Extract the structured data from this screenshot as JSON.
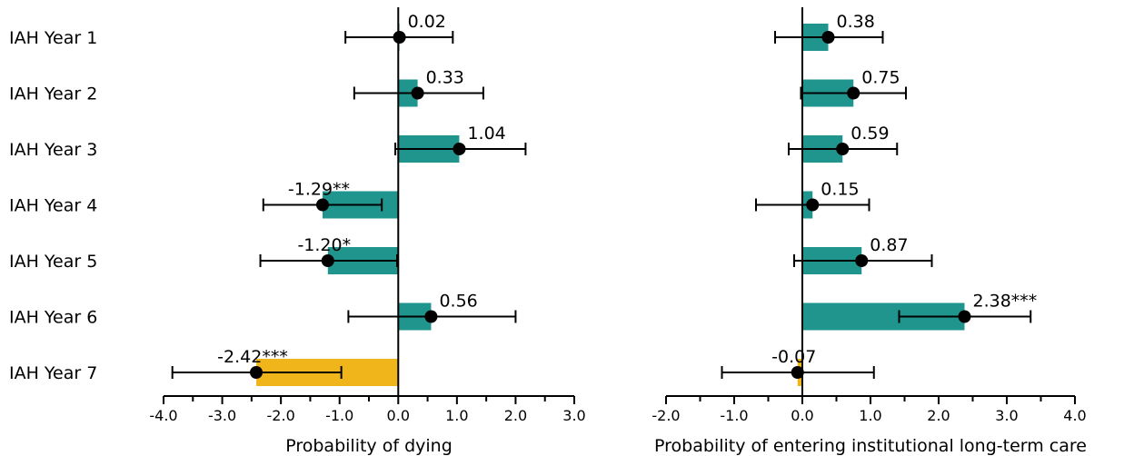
{
  "chart_data": {
    "type": "bar",
    "orientation": "horizontal",
    "categories": [
      "IAH Year 1",
      "IAH Year 2",
      "IAH Year 3",
      "IAH Year 4",
      "IAH Year 5",
      "IAH Year 6",
      "IAH Year 7"
    ],
    "colors": {
      "positive": "#20958E",
      "negative": "#F1B51C",
      "marker": "#000000"
    },
    "panels": [
      {
        "xlabel": "Probability of dying",
        "xlim": [
          -4.0,
          3.0
        ],
        "ticks": [
          -4.0,
          -3.0,
          -2.0,
          -1.0,
          0.0,
          1.0,
          2.0,
          3.0
        ],
        "tick_labels": [
          "-4.0",
          "-3.0",
          "-2.0",
          "-1.0",
          "0.0",
          "1.0",
          "2.0",
          "3.0"
        ],
        "values": [
          0.02,
          0.33,
          1.04,
          -1.29,
          -1.2,
          0.56,
          -2.42
        ],
        "ci_low": [
          -0.9,
          -0.75,
          -0.05,
          -2.3,
          -2.35,
          -0.85,
          -3.85
        ],
        "ci_high": [
          0.93,
          1.45,
          2.17,
          -0.28,
          -0.02,
          2.0,
          -0.97
        ],
        "highlight": [
          false,
          false,
          false,
          false,
          false,
          false,
          true
        ],
        "labels": [
          "0.02",
          "0.33",
          "1.04",
          "-1.29**",
          "-1.20*",
          "0.56",
          "-2.42***"
        ]
      },
      {
        "xlabel": "Probability of entering institutional long-term care",
        "xlim": [
          -2.0,
          4.0
        ],
        "ticks": [
          -2.0,
          -1.0,
          0.0,
          1.0,
          2.0,
          3.0,
          4.0
        ],
        "tick_labels": [
          "-2.0",
          "-1.0",
          "0.0",
          "1.0",
          "2.0",
          "3.0",
          "4.0"
        ],
        "values": [
          0.38,
          0.75,
          0.59,
          0.15,
          0.87,
          2.38,
          -0.07
        ],
        "ci_low": [
          -0.4,
          -0.02,
          -0.2,
          -0.68,
          -0.12,
          1.42,
          -1.18
        ],
        "ci_high": [
          1.18,
          1.52,
          1.39,
          0.98,
          1.9,
          3.35,
          1.05
        ],
        "highlight": [
          false,
          false,
          false,
          false,
          false,
          false,
          true
        ],
        "labels": [
          "0.38",
          "0.75",
          "0.59",
          "0.15",
          "0.87",
          "2.38***",
          "-0.07"
        ]
      }
    ]
  }
}
